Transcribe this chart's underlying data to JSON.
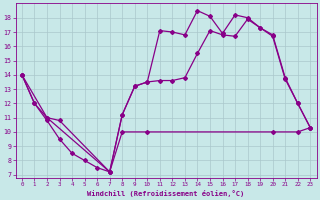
{
  "xlabel": "Windchill (Refroidissement éolien,°C)",
  "bg_color": "#c8e8e8",
  "line_color": "#880088",
  "xlim": [
    -0.5,
    23.5
  ],
  "ylim": [
    6.8,
    19.0
  ],
  "xticks": [
    0,
    1,
    2,
    3,
    4,
    5,
    6,
    7,
    8,
    9,
    10,
    11,
    12,
    13,
    14,
    15,
    16,
    17,
    18,
    19,
    20,
    21,
    22,
    23
  ],
  "yticks": [
    7,
    8,
    9,
    10,
    11,
    12,
    13,
    14,
    15,
    16,
    17,
    18
  ],
  "line1_x": [
    0,
    1,
    2,
    3,
    4,
    5,
    6,
    7,
    8,
    9,
    10,
    11,
    12,
    13,
    14,
    15,
    16,
    17,
    18,
    19,
    20,
    21,
    22,
    23
  ],
  "line1_y": [
    14,
    12,
    10.8,
    9.5,
    8.5,
    8.0,
    7.5,
    7.2,
    11.2,
    13.2,
    13.5,
    17.1,
    17.0,
    16.8,
    18.5,
    18.1,
    16.9,
    18.2,
    18.0,
    17.3,
    16.7,
    13.7,
    12.0,
    10.3
  ],
  "line2_x": [
    0,
    1,
    2,
    7,
    8,
    9,
    10,
    11,
    12,
    13,
    14,
    15,
    16,
    17,
    18,
    19,
    20,
    21,
    22,
    23
  ],
  "line2_y": [
    14,
    12,
    11,
    7.2,
    11.2,
    13.2,
    13.5,
    13.6,
    13.6,
    13.8,
    15.5,
    17.1,
    16.8,
    16.7,
    17.9,
    17.3,
    16.8,
    13.8,
    12.0,
    10.3
  ],
  "line3_x": [
    0,
    2,
    3,
    7,
    8,
    10,
    20,
    22,
    23
  ],
  "line3_y": [
    14,
    11,
    10.8,
    7.2,
    10.0,
    10.0,
    10.0,
    10.0,
    10.3
  ],
  "grid_color": "#aac8cc",
  "marker": "D",
  "marker_size": 2,
  "line_width": 0.9
}
